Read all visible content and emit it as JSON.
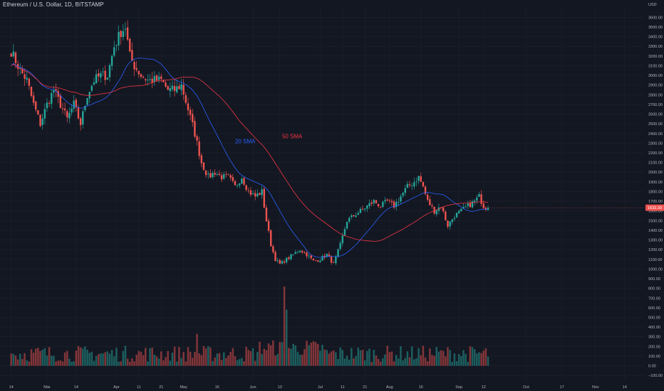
{
  "header": {
    "symbol_line": "Ethereum / U.S. Dollar, 1D, BITSTAMP"
  },
  "colors": {
    "background": "#131722",
    "up": "#26a69a",
    "down": "#ef5350",
    "sma20": "#2962ff",
    "sma50": "#f23645",
    "grid": "#1e222d",
    "axis_text": "#b2b5be"
  },
  "chart_data": {
    "type": "candlestick",
    "title": "Ethereum / U.S. Dollar, 1D, BITSTAMP",
    "xlabel": "",
    "ylabel": "",
    "currency_label": "USD",
    "y_axis_ticks": [
      -100,
      0,
      100,
      200,
      300,
      400,
      500,
      600,
      700,
      800,
      900,
      1000,
      1100,
      1200,
      1300,
      1400,
      1500,
      1600,
      1700,
      1800,
      1900,
      2000,
      2100,
      2200,
      2300,
      2400,
      2500,
      2600,
      2700,
      2800,
      2900,
      3000,
      3100,
      3200,
      3300,
      3400,
      3500,
      3600
    ],
    "y_axis_tick_labels": [
      "−100.00",
      "0.00",
      "100.00",
      "200.00",
      "300.00",
      "400.00",
      "500.00",
      "600.00",
      "700.00",
      "800.00",
      "900.00",
      "1000.00",
      "1100.00",
      "1200.00",
      "1300.00",
      "1400.00",
      "1500.00",
      "1600.00",
      "1700.00",
      "1800.00",
      "1900.00",
      "2000.00",
      "2100.00",
      "2200.00",
      "2300.00",
      "2400.00",
      "2500.00",
      "2600.00",
      "2700.00",
      "2800.00",
      "2900.00",
      "3000.00",
      "3100.00",
      "3200.00",
      "3300.00",
      "3400.00",
      "3500.00",
      "3600.00"
    ],
    "x_axis_ticks": [
      {
        "label": "14",
        "day": 0
      },
      {
        "label": "Mar",
        "day": 16
      },
      {
        "label": "14",
        "day": 29
      },
      {
        "label": "Apr",
        "day": 47
      },
      {
        "label": "11",
        "day": 57
      },
      {
        "label": "21",
        "day": 67
      },
      {
        "label": "May",
        "day": 77
      },
      {
        "label": "16",
        "day": 92
      },
      {
        "label": "Jun",
        "day": 108
      },
      {
        "label": "13",
        "day": 120
      },
      {
        "label": "Jul",
        "day": 138
      },
      {
        "label": "11",
        "day": 148
      },
      {
        "label": "21",
        "day": 158
      },
      {
        "label": "Aug",
        "day": 169
      },
      {
        "label": "15",
        "day": 183
      },
      {
        "label": "Sep",
        "day": 200
      },
      {
        "label": "12",
        "day": 211
      },
      {
        "label": "Oct",
        "day": 230
      },
      {
        "label": "17",
        "day": 246
      },
      {
        "label": "Nov",
        "day": 261
      },
      {
        "label": "14",
        "day": 274
      }
    ],
    "anchor_points": [
      [
        0,
        3250
      ],
      [
        4,
        3050
      ],
      [
        7,
        2950
      ],
      [
        10,
        2700
      ],
      [
        13,
        2500
      ],
      [
        16,
        2700
      ],
      [
        19,
        2850
      ],
      [
        22,
        2700
      ],
      [
        25,
        2550
      ],
      [
        28,
        2700
      ],
      [
        31,
        2500
      ],
      [
        34,
        2800
      ],
      [
        37,
        2950
      ],
      [
        40,
        3000
      ],
      [
        43,
        3000
      ],
      [
        46,
        3300
      ],
      [
        49,
        3450
      ],
      [
        51,
        3500
      ],
      [
        53,
        3200
      ],
      [
        55,
        3100
      ],
      [
        58,
        3000
      ],
      [
        61,
        2950
      ],
      [
        64,
        2950
      ],
      [
        67,
        2950
      ],
      [
        70,
        2850
      ],
      [
        73,
        2850
      ],
      [
        76,
        2900
      ],
      [
        79,
        2650
      ],
      [
        82,
        2400
      ],
      [
        85,
        2100
      ],
      [
        88,
        1950
      ],
      [
        91,
        2000
      ],
      [
        94,
        1950
      ],
      [
        97,
        1950
      ],
      [
        100,
        1850
      ],
      [
        103,
        1950
      ],
      [
        106,
        1800
      ],
      [
        109,
        1750
      ],
      [
        112,
        1800
      ],
      [
        114,
        1500
      ],
      [
        116,
        1250
      ],
      [
        118,
        1100
      ],
      [
        120,
        1050
      ],
      [
        123,
        1100
      ],
      [
        126,
        1150
      ],
      [
        129,
        1200
      ],
      [
        132,
        1150
      ],
      [
        135,
        1080
      ],
      [
        138,
        1100
      ],
      [
        141,
        1150
      ],
      [
        144,
        1050
      ],
      [
        147,
        1250
      ],
      [
        150,
        1500
      ],
      [
        153,
        1550
      ],
      [
        156,
        1600
      ],
      [
        159,
        1650
      ],
      [
        162,
        1700
      ],
      [
        165,
        1650
      ],
      [
        168,
        1700
      ],
      [
        171,
        1650
      ],
      [
        174,
        1750
      ],
      [
        177,
        1850
      ],
      [
        180,
        1900
      ],
      [
        182,
        1950
      ],
      [
        184,
        1850
      ],
      [
        186,
        1700
      ],
      [
        189,
        1600
      ],
      [
        192,
        1650
      ],
      [
        195,
        1450
      ],
      [
        198,
        1550
      ],
      [
        201,
        1600
      ],
      [
        204,
        1650
      ],
      [
        207,
        1700
      ],
      [
        209,
        1750
      ],
      [
        211,
        1650
      ],
      [
        213,
        1630
      ]
    ],
    "last_day": 213,
    "last_price": 1633.39,
    "last_price_label": "1633.39",
    "volume_scale_note": "volume shown on same price axis (approx 0 to 800)",
    "indicators": [
      {
        "name": "20 SMA",
        "period": 20,
        "label": "20 SMA",
        "label_day": 100,
        "label_value": 2300
      },
      {
        "name": "50 SMA",
        "period": 50,
        "label": "50 SMA",
        "label_day": 121,
        "label_value": 2350
      }
    ],
    "x_range_days": [
      -5,
      283
    ],
    "ylim": [
      -150,
      3720
    ],
    "grid": true,
    "legend": "none"
  }
}
